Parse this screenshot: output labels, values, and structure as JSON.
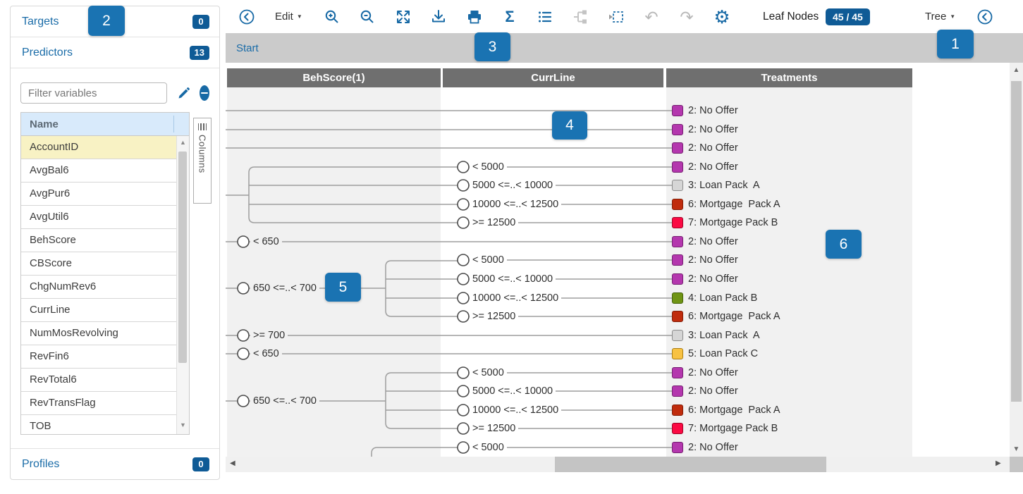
{
  "colors": {
    "accent_blue": "#1769a5",
    "link_blue": "#1a6ca8",
    "badge_navy": "#0f5b96",
    "callout_blue": "#1a73b2",
    "column_header_gray": "#6f6f6f",
    "column_bg_gray": "#f1f1f1",
    "start_bar_gray": "#cbcbcb"
  },
  "callouts": [
    {
      "label": "1"
    },
    {
      "label": "2"
    },
    {
      "label": "3"
    },
    {
      "label": "4"
    },
    {
      "label": "5"
    },
    {
      "label": "6"
    }
  ],
  "sidebar": {
    "sections": {
      "targets": {
        "label": "Targets",
        "count": "0"
      },
      "predictors": {
        "label": "Predictors",
        "count": "13"
      },
      "profiles": {
        "label": "Profiles",
        "count": "0"
      }
    },
    "filter_placeholder": "Filter variables",
    "table": {
      "header": "Name",
      "columns_tab_label": "Columns",
      "rows": [
        "AccountID",
        "AvgBal6",
        "AvgPur6",
        "AvgUtil6",
        "BehScore",
        "CBScore",
        "ChgNumRev6",
        "CurrLine",
        "NumMosRevolving",
        "RevFin6",
        "RevTotal6",
        "RevTransFlag",
        "TOB"
      ],
      "selected_row": "AccountID"
    }
  },
  "toolbar": {
    "edit_label": "Edit",
    "sigma_glyph": "Σ",
    "undo_glyph": "↶",
    "redo_glyph": "↷",
    "gear_glyph": "⚙",
    "leaf_nodes_label": "Leaf Nodes",
    "leaf_nodes_count": "45 / 45",
    "tree_label": "Tree"
  },
  "start_bar": {
    "label": "Start"
  },
  "tree": {
    "columns": [
      "BehScore(1)",
      "CurrLine",
      "Treatments"
    ],
    "beh_nodes": [
      {
        "label": "< 650",
        "row": 7
      },
      {
        "label": "650 <=..< 700",
        "between": [
          8,
          11
        ]
      },
      {
        "label": ">= 700",
        "row": 12
      },
      {
        "label": "< 650",
        "row": 13
      },
      {
        "label": "650 <=..< 700",
        "between": [
          14,
          17
        ]
      }
    ],
    "rows": [
      {
        "start": "full",
        "treatment": "2: No Offer",
        "color": "purple"
      },
      {
        "start": "full",
        "treatment": "2: No Offer",
        "color": "purple"
      },
      {
        "start": "full",
        "treatment": "2: No Offer",
        "color": "purple"
      },
      {
        "start": "curr",
        "curr": "< 5000",
        "treatment": "2: No Offer",
        "color": "purple"
      },
      {
        "start": "curr",
        "curr": "5000 <=..< 10000",
        "treatment": "3: Loan Pack  A",
        "color": "gray"
      },
      {
        "start": "curr",
        "curr": "10000 <=..< 12500",
        "treatment": "6: Mortgage  Pack A",
        "color": "brick"
      },
      {
        "start": "curr",
        "curr": ">= 12500",
        "treatment": "7: Mortgage Pack B",
        "color": "crimson"
      },
      {
        "start": "beh",
        "treatment": "2: No Offer",
        "color": "purple"
      },
      {
        "start": "curr",
        "curr": "< 5000",
        "treatment": "2: No Offer",
        "color": "purple"
      },
      {
        "start": "curr",
        "curr": "5000 <=..< 10000",
        "treatment": "2: No Offer",
        "color": "purple"
      },
      {
        "start": "curr",
        "curr": "10000 <=..< 12500",
        "treatment": "4: Loan Pack B",
        "color": "green"
      },
      {
        "start": "curr",
        "curr": ">= 12500",
        "treatment": "6: Mortgage  Pack A",
        "color": "brick"
      },
      {
        "start": "beh",
        "treatment": "3: Loan Pack  A",
        "color": "gray"
      },
      {
        "start": "beh",
        "treatment": "5: Loan Pack C",
        "color": "amber"
      },
      {
        "start": "curr",
        "curr": "< 5000",
        "treatment": "2: No Offer",
        "color": "purple"
      },
      {
        "start": "curr",
        "curr": "5000 <=..< 10000",
        "treatment": "2: No Offer",
        "color": "purple"
      },
      {
        "start": "curr",
        "curr": "10000 <=..< 12500",
        "treatment": "6: Mortgage  Pack A",
        "color": "brick"
      },
      {
        "start": "curr",
        "curr": ">= 12500",
        "treatment": "7: Mortgage Pack B",
        "color": "crimson"
      },
      {
        "start": "curr",
        "curr": "< 5000",
        "treatment": "2: No Offer",
        "color": "purple"
      }
    ],
    "treatment_colors": {
      "purple": {
        "fill": "#b437ae",
        "border": "#741f70"
      },
      "gray": {
        "fill": "#d6d6d6",
        "border": "#8c8c8c"
      },
      "brick": {
        "fill": "#c02c0d",
        "border": "#801c05"
      },
      "crimson": {
        "fill": "#fb0a43",
        "border": "#9c0426"
      },
      "green": {
        "fill": "#6f9414",
        "border": "#44610a"
      },
      "amber": {
        "fill": "#f8c243",
        "border": "#aa7d12"
      }
    }
  }
}
